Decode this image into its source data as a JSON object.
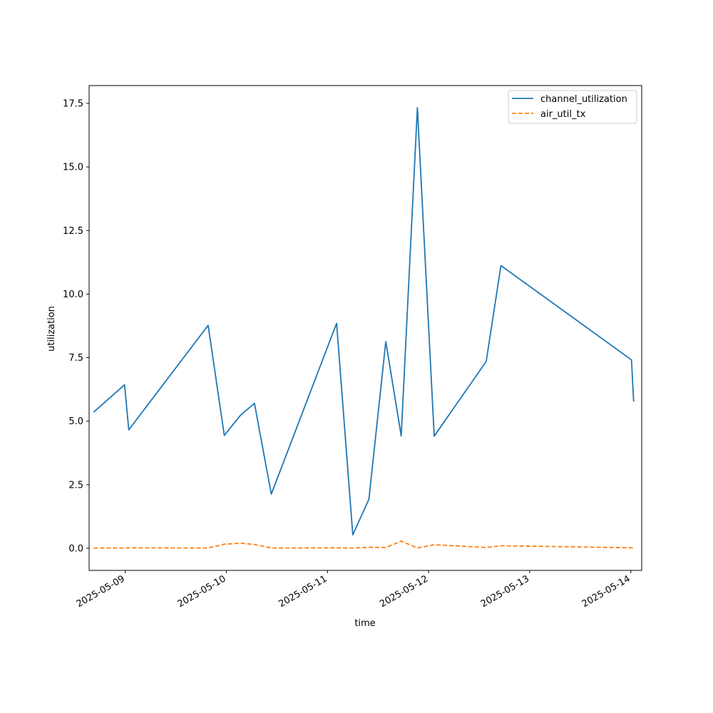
{
  "chart_data": {
    "type": "line",
    "title": "",
    "xlabel": "time",
    "ylabel": "utilization",
    "x_axis_type": "date",
    "xlim": [
      "2025-05-08 15:25",
      "2025-05-14 02:35"
    ],
    "ylim": [
      -0.87,
      18.2
    ],
    "x_tick_labels": [
      "2025-05-09",
      "2025-05-10",
      "2025-05-11",
      "2025-05-12",
      "2025-05-13",
      "2025-05-14"
    ],
    "y_ticks": [
      0.0,
      2.5,
      5.0,
      7.5,
      10.0,
      12.5,
      15.0,
      17.5
    ],
    "y_tick_labels": [
      "0.0",
      "2.5",
      "5.0",
      "7.5",
      "10.0",
      "12.5",
      "15.0",
      "17.5"
    ],
    "grid": false,
    "legend_position": "top-right",
    "series": [
      {
        "name": "channel_utilization",
        "color": "#1f77b4",
        "line_style": "solid",
        "points": [
          {
            "x": "2025-05-08 16:30",
            "y": 5.36
          },
          {
            "x": "2025-05-08 23:50",
            "y": 6.43
          },
          {
            "x": "2025-05-09 00:50",
            "y": 4.66
          },
          {
            "x": "2025-05-09 19:40",
            "y": 8.77
          },
          {
            "x": "2025-05-09 23:30",
            "y": 4.44
          },
          {
            "x": "2025-05-10 03:20",
            "y": 5.23
          },
          {
            "x": "2025-05-10 06:40",
            "y": 5.7
          },
          {
            "x": "2025-05-10 10:40",
            "y": 2.13
          },
          {
            "x": "2025-05-11 02:10",
            "y": 8.85
          },
          {
            "x": "2025-05-11 06:00",
            "y": 0.53
          },
          {
            "x": "2025-05-11 09:50",
            "y": 1.93
          },
          {
            "x": "2025-05-11 13:50",
            "y": 8.13
          },
          {
            "x": "2025-05-11 17:30",
            "y": 4.42
          },
          {
            "x": "2025-05-11 21:20",
            "y": 17.33
          },
          {
            "x": "2025-05-12 01:20",
            "y": 4.41
          },
          {
            "x": "2025-05-12 13:40",
            "y": 7.35
          },
          {
            "x": "2025-05-12 17:10",
            "y": 11.12
          },
          {
            "x": "2025-05-14 00:10",
            "y": 7.41
          },
          {
            "x": "2025-05-14 00:40",
            "y": 5.77
          }
        ]
      },
      {
        "name": "air_util_tx",
        "color": "#ff7f0e",
        "line_style": "dashed",
        "points": [
          {
            "x": "2025-05-08 16:30",
            "y": 0.01
          },
          {
            "x": "2025-05-08 23:50",
            "y": 0.01
          },
          {
            "x": "2025-05-09 00:50",
            "y": 0.02
          },
          {
            "x": "2025-05-09 19:40",
            "y": 0.01
          },
          {
            "x": "2025-05-09 23:30",
            "y": 0.16
          },
          {
            "x": "2025-05-10 03:20",
            "y": 0.2
          },
          {
            "x": "2025-05-10 06:40",
            "y": 0.15
          },
          {
            "x": "2025-05-10 10:40",
            "y": 0.01
          },
          {
            "x": "2025-05-11 02:10",
            "y": 0.02
          },
          {
            "x": "2025-05-11 06:00",
            "y": 0.01
          },
          {
            "x": "2025-05-11 09:50",
            "y": 0.04
          },
          {
            "x": "2025-05-11 13:50",
            "y": 0.03
          },
          {
            "x": "2025-05-11 17:30",
            "y": 0.28
          },
          {
            "x": "2025-05-11 21:20",
            "y": 0.01
          },
          {
            "x": "2025-05-12 01:20",
            "y": 0.14
          },
          {
            "x": "2025-05-12 13:40",
            "y": 0.03
          },
          {
            "x": "2025-05-12 17:10",
            "y": 0.1
          },
          {
            "x": "2025-05-14 00:10",
            "y": 0.02
          },
          {
            "x": "2025-05-14 00:40",
            "y": 0.01
          }
        ]
      }
    ]
  }
}
